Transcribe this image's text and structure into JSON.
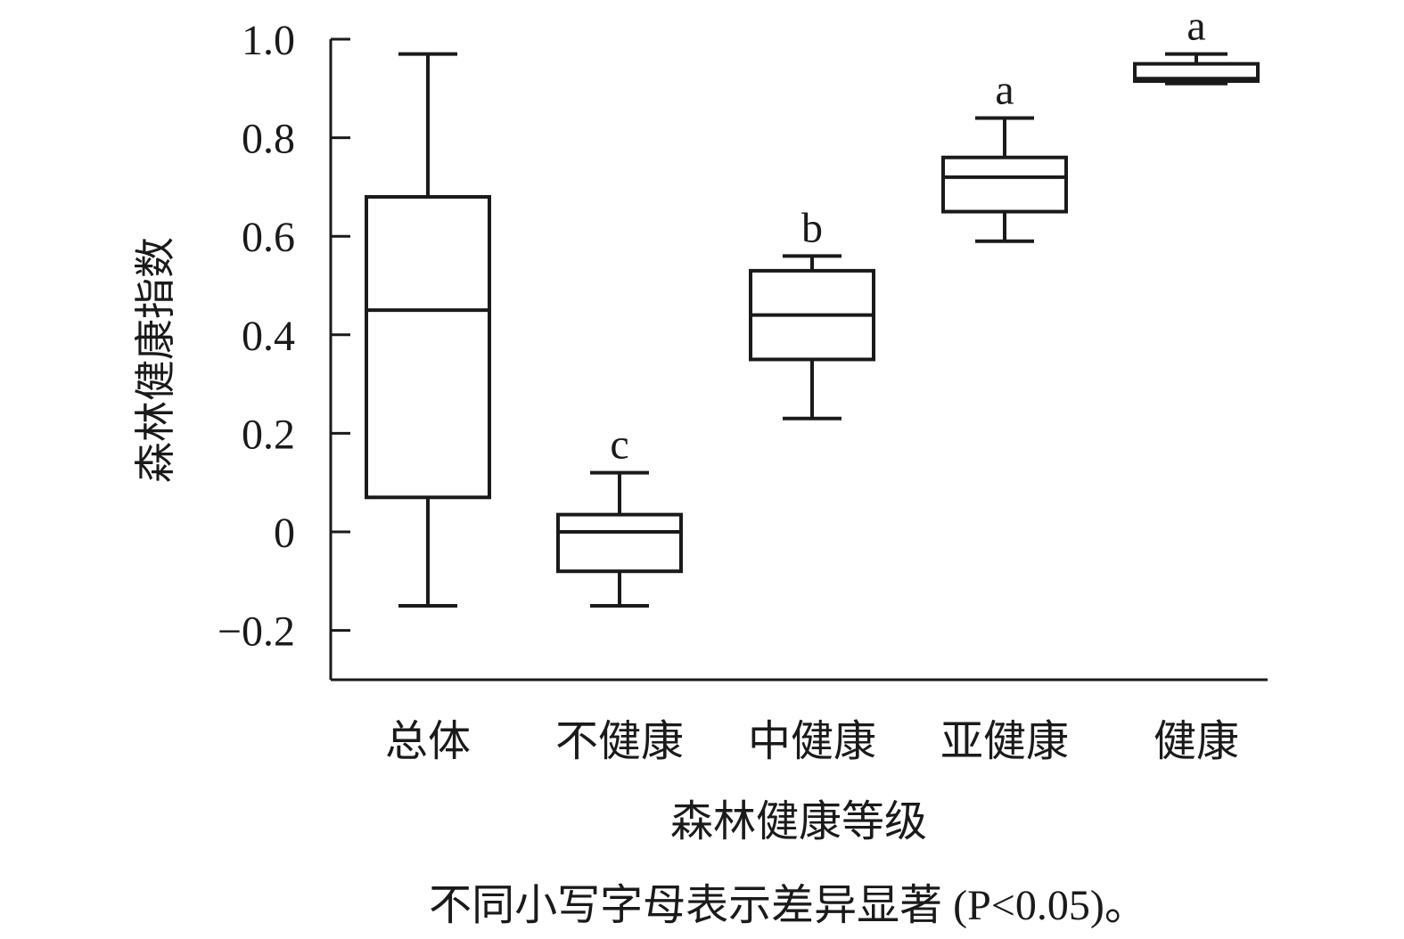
{
  "chart_data": {
    "type": "box",
    "ylabel": "森林健康指数",
    "xlabel": "森林健康等级",
    "note": "不同小写字母表示差异显著 (P<0.05)。",
    "ylim": [
      -0.3,
      1.0
    ],
    "yticks": [
      {
        "value": 1.0,
        "label": "1.0"
      },
      {
        "value": 0.8,
        "label": "0.8"
      },
      {
        "value": 0.6,
        "label": "0.6"
      },
      {
        "value": 0.4,
        "label": "0.4"
      },
      {
        "value": 0.2,
        "label": "0.2"
      },
      {
        "value": 0.0,
        "label": "0"
      },
      {
        "value": -0.2,
        "label": "−0.2"
      }
    ],
    "categories": [
      "总体",
      "不健康",
      "中健康",
      "亚健康",
      "健康"
    ],
    "boxes": [
      {
        "category": "总体",
        "min": -0.15,
        "q1": 0.07,
        "median": 0.45,
        "q3": 0.68,
        "max": 0.97,
        "letter": ""
      },
      {
        "category": "不健康",
        "min": -0.15,
        "q1": -0.08,
        "median": 0.0,
        "q3": 0.035,
        "max": 0.12,
        "letter": "c"
      },
      {
        "category": "中健康",
        "min": 0.23,
        "q1": 0.35,
        "median": 0.44,
        "q3": 0.53,
        "max": 0.56,
        "letter": "b"
      },
      {
        "category": "亚健康",
        "min": 0.59,
        "q1": 0.65,
        "median": 0.72,
        "q3": 0.76,
        "max": 0.84,
        "letter": "a"
      },
      {
        "category": "健康",
        "min": 0.91,
        "q1": 0.915,
        "median": 0.92,
        "q3": 0.95,
        "max": 0.97,
        "letter": "a"
      }
    ],
    "grid": false,
    "legend": "none"
  }
}
